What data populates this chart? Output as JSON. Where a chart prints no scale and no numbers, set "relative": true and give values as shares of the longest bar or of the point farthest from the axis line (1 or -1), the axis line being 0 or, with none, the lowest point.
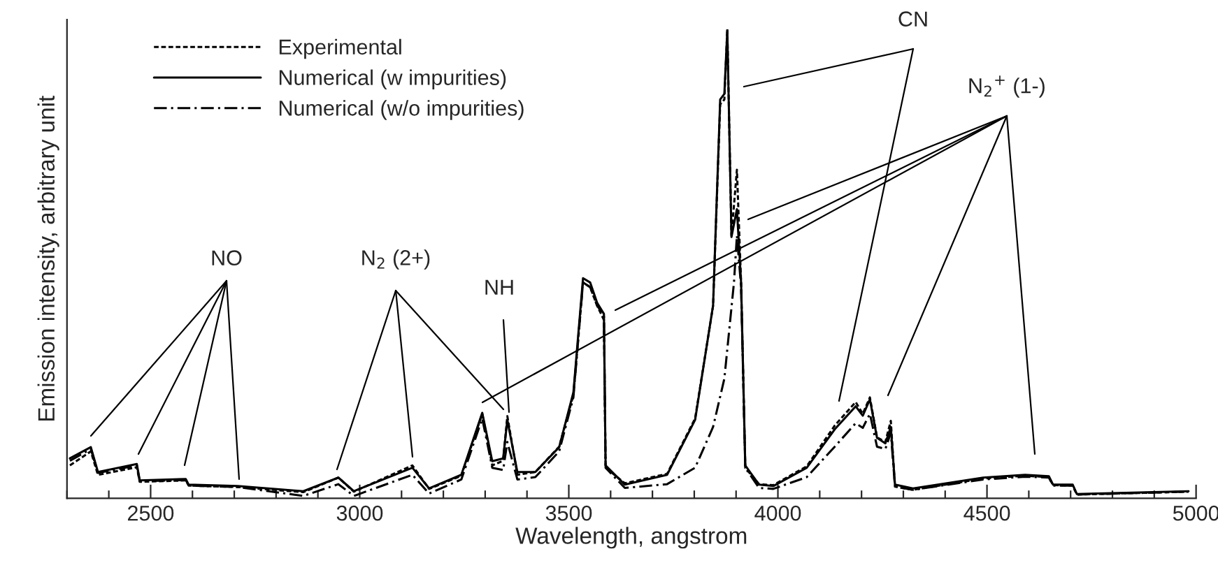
{
  "chart_data": {
    "type": "line",
    "relative": true,
    "xlabel": "Wavelength, angstrom",
    "ylabel": "Emission intensity, arbitrary unit",
    "xlim": [
      2300,
      5000
    ],
    "xticks": [
      {
        "value": 2300,
        "label": null
      },
      {
        "value": 2400,
        "label": null
      },
      2500,
      {
        "value": 2600,
        "label": null
      },
      {
        "value": 2700,
        "label": null
      },
      {
        "value": 2800,
        "label": null
      },
      {
        "value": 2900,
        "label": null
      },
      3000,
      {
        "value": 3100,
        "label": null
      },
      {
        "value": 3200,
        "label": null
      },
      {
        "value": 3300,
        "label": null
      },
      {
        "value": 3400,
        "label": null
      },
      3500,
      {
        "value": 3600,
        "label": null
      },
      {
        "value": 3700,
        "label": null
      },
      {
        "value": 3800,
        "label": null
      },
      {
        "value": 3900,
        "label": null
      },
      4000,
      {
        "value": 4100,
        "label": null
      },
      {
        "value": 4200,
        "label": null
      },
      {
        "value": 4300,
        "label": null
      },
      {
        "value": 4400,
        "label": null
      },
      4500,
      {
        "value": 4600,
        "label": null
      },
      {
        "value": 4700,
        "label": null
      },
      {
        "value": 4800,
        "label": null
      },
      {
        "value": 4900,
        "label": null
      },
      5000
    ],
    "legend": "top left",
    "grid": false,
    "marker": "none",
    "series": [
      {
        "name": "Experimental",
        "color": "#000000",
        "line_style": "dashed",
        "x": [
          2307,
          2357,
          2374,
          2467,
          2474,
          2584,
          2591,
          2708,
          2865,
          2949,
          2986,
          3126,
          3166,
          3243,
          3293,
          3317,
          3343,
          3353,
          3377,
          3420,
          3477,
          3511,
          3534,
          3551,
          3568,
          3584,
          3588,
          3634,
          3735,
          3802,
          3845,
          3862,
          3872,
          3879,
          3889,
          3902,
          3912,
          3922,
          3955,
          3989,
          4069,
          4136,
          4186,
          4203,
          4220,
          4237,
          4257,
          4270,
          4280,
          4323,
          4491,
          4591,
          4648,
          4658,
          4705,
          4715,
          4982
        ],
        "values": [
          0.07,
          0.1,
          0.05,
          0.066,
          0.035,
          0.038,
          0.027,
          0.024,
          0.013,
          0.044,
          0.014,
          0.07,
          0.02,
          0.048,
          0.18,
          0.07,
          0.08,
          0.175,
          0.05,
          0.056,
          0.11,
          0.22,
          0.46,
          0.45,
          0.41,
          0.38,
          0.065,
          0.032,
          0.052,
          0.17,
          0.41,
          0.84,
          0.85,
          1,
          0.56,
          0.7,
          0.46,
          0.065,
          0.03,
          0.028,
          0.068,
          0.155,
          0.205,
          0.18,
          0.215,
          0.13,
          0.12,
          0.165,
          0.025,
          0.018,
          0.042,
          0.048,
          0.045,
          0.028,
          0.027,
          0.008,
          0.014
        ]
      },
      {
        "name": "Numerical (w impurities)",
        "color": "#000000",
        "line_style": "solid",
        "x": [
          2307,
          2357,
          2374,
          2467,
          2474,
          2584,
          2591,
          2708,
          2865,
          2949,
          2986,
          3126,
          3166,
          3243,
          3293,
          3317,
          3343,
          3353,
          3377,
          3420,
          3477,
          3511,
          3534,
          3551,
          3568,
          3584,
          3588,
          3634,
          3735,
          3802,
          3845,
          3862,
          3872,
          3879,
          3889,
          3902,
          3912,
          3922,
          3955,
          3989,
          4069,
          4136,
          4186,
          4203,
          4220,
          4237,
          4257,
          4270,
          4280,
          4323,
          4491,
          4591,
          4648,
          4658,
          4705,
          4715,
          4982
        ],
        "values": [
          0.085,
          0.109,
          0.056,
          0.073,
          0.038,
          0.041,
          0.029,
          0.026,
          0.015,
          0.044,
          0.015,
          0.065,
          0.021,
          0.05,
          0.182,
          0.079,
          0.085,
          0.167,
          0.056,
          0.056,
          0.109,
          0.226,
          0.469,
          0.46,
          0.416,
          0.393,
          0.07,
          0.029,
          0.05,
          0.167,
          0.411,
          0.85,
          0.862,
          0.997,
          0.557,
          0.616,
          0.46,
          0.07,
          0.029,
          0.026,
          0.065,
          0.147,
          0.196,
          0.176,
          0.211,
          0.129,
          0.117,
          0.152,
          0.029,
          0.021,
          0.044,
          0.05,
          0.047,
          0.029,
          0.029,
          0.009,
          0.015
        ]
      },
      {
        "name": "Numerical (w/o impurities)",
        "color": "#000000",
        "line_style": "dashdot",
        "x": [
          2307,
          2357,
          2374,
          2467,
          2474,
          2584,
          2591,
          2708,
          2865,
          2949,
          2986,
          3126,
          3166,
          3243,
          3293,
          3317,
          3343,
          3353,
          3377,
          3420,
          3477,
          3511,
          3534,
          3551,
          3568,
          3584,
          3588,
          3634,
          3735,
          3802,
          3845,
          3872,
          3895,
          3902,
          3912,
          3922,
          3955,
          3989,
          4069,
          4136,
          4186,
          4203,
          4220,
          4237,
          4257,
          4270,
          4280,
          4323,
          4491,
          4591,
          4648,
          4658,
          4705,
          4715,
          4982
        ],
        "values": [
          0.08,
          0.105,
          0.054,
          0.07,
          0.036,
          0.039,
          0.027,
          0.024,
          0.005,
          0.03,
          0.005,
          0.05,
          0.01,
          0.04,
          0.17,
          0.065,
          0.06,
          0.12,
          0.04,
          0.045,
          0.1,
          0.215,
          0.46,
          0.45,
          0.41,
          0.39,
          0.065,
          0.022,
          0.03,
          0.065,
          0.152,
          0.255,
          0.46,
          0.56,
          0.45,
          0.065,
          0.022,
          0.02,
          0.045,
          0.11,
          0.16,
          0.15,
          0.18,
          0.11,
          0.105,
          0.14,
          0.025,
          0.018,
          0.04,
          0.046,
          0.044,
          0.027,
          0.027,
          0.008,
          0.014
        ]
      }
    ],
    "annotations": [
      "NO",
      "N$_{2}$ (2+)",
      "NH",
      "CN",
      "N$_{2}$$^{+}$ (1-)"
    ]
  }
}
